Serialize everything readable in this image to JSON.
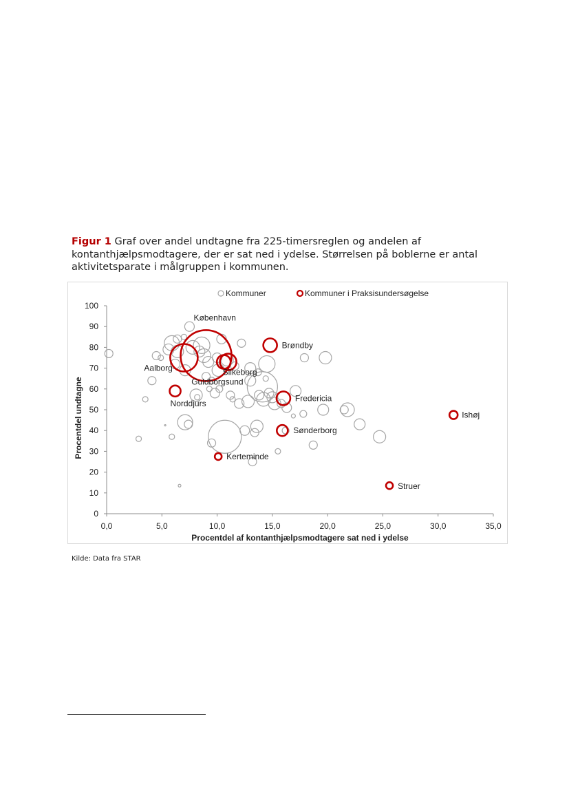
{
  "caption": {
    "figure_label": "Figur 1",
    "text": " Graf over andel undtagne fra 225-timersreglen og andelen af kontanthjælpsmodtagere, der er sat ned i ydelse. Størrelsen på boblerne er antal aktivitetsparate i målgruppen i kommunen."
  },
  "source": "Kilde: Data fra STAR",
  "colors": {
    "kommuner": "#a6a6a6",
    "praksis": "#c00000"
  },
  "chart_data": {
    "type": "scatter",
    "subtype": "bubble",
    "xlabel": "Procentdel af kontanthjælpsmodtagere sat ned i ydelse",
    "ylabel": "Procentdel undtagne",
    "xlim": [
      0,
      35
    ],
    "ylim": [
      0,
      100
    ],
    "x_ticks": [
      "0,0",
      "5,0",
      "10,0",
      "15,0",
      "20,0",
      "25,0",
      "30,0",
      "35,0"
    ],
    "y_ticks": [
      "0",
      "10",
      "20",
      "30",
      "40",
      "50",
      "60",
      "70",
      "80",
      "90",
      "100"
    ],
    "legend_position": "top",
    "grid": false,
    "series": [
      {
        "name": "Kommuner",
        "points": [
          [
            0.2,
            77,
            6
          ],
          [
            2.9,
            36,
            4
          ],
          [
            3.5,
            55,
            4
          ],
          [
            4.1,
            64,
            6
          ],
          [
            4.5,
            76,
            6
          ],
          [
            4.9,
            75,
            4
          ],
          [
            5.3,
            42.5,
            1
          ],
          [
            5.6,
            79,
            8
          ],
          [
            5.9,
            82,
            11
          ],
          [
            5.9,
            37,
            4
          ],
          [
            6.2,
            72,
            7
          ],
          [
            6.4,
            84,
            6
          ],
          [
            6.4,
            78,
            9
          ],
          [
            6.6,
            13.5,
            2
          ],
          [
            7.0,
            85,
            4
          ],
          [
            7.1,
            44,
            11
          ],
          [
            7.1,
            69,
            8
          ],
          [
            7.4,
            43,
            6
          ],
          [
            7.5,
            90,
            7
          ],
          [
            7.8,
            80,
            10
          ],
          [
            8.1,
            57,
            9
          ],
          [
            8.2,
            56,
            4
          ],
          [
            8.4,
            78,
            8
          ],
          [
            8.6,
            81,
            12
          ],
          [
            8.8,
            76,
            10
          ],
          [
            9.0,
            66,
            6
          ],
          [
            9.2,
            73,
            8
          ],
          [
            9.5,
            64,
            5
          ],
          [
            9.3,
            60,
            4
          ],
          [
            9.5,
            34,
            6
          ],
          [
            9.8,
            58,
            7
          ],
          [
            10.0,
            75,
            7
          ],
          [
            10.1,
            69,
            9
          ],
          [
            10.2,
            60,
            5
          ],
          [
            10.4,
            84,
            7
          ],
          [
            10.7,
            37,
            24
          ],
          [
            10.9,
            74,
            9
          ],
          [
            11.2,
            57,
            6
          ],
          [
            11.4,
            55,
            4
          ],
          [
            11.6,
            71,
            6
          ],
          [
            12.0,
            53,
            7
          ],
          [
            12.2,
            82,
            6
          ],
          [
            12.5,
            40,
            7
          ],
          [
            12.8,
            54,
            9
          ],
          [
            13.0,
            64,
            8
          ],
          [
            13.0,
            70,
            8
          ],
          [
            13.2,
            25,
            6
          ],
          [
            13.4,
            39,
            6
          ],
          [
            13.6,
            42,
            9
          ],
          [
            13.7,
            68,
            5
          ],
          [
            13.8,
            57,
            7
          ],
          [
            14.1,
            61,
            22
          ],
          [
            14.2,
            55,
            10
          ],
          [
            14.4,
            65,
            4
          ],
          [
            14.5,
            72,
            12
          ],
          [
            14.7,
            58,
            7
          ],
          [
            15.0,
            56,
            8
          ],
          [
            15.2,
            53,
            9
          ],
          [
            15.5,
            30,
            4
          ],
          [
            15.8,
            53,
            6
          ],
          [
            16.2,
            40,
            5
          ],
          [
            16.3,
            51,
            7
          ],
          [
            16.9,
            47,
            3
          ],
          [
            17.1,
            59,
            8
          ],
          [
            17.8,
            48,
            5
          ],
          [
            17.9,
            75,
            6
          ],
          [
            18.7,
            33,
            6
          ],
          [
            19.6,
            50,
            8
          ],
          [
            19.8,
            75,
            9
          ],
          [
            21.5,
            50,
            6
          ],
          [
            21.8,
            50,
            10
          ],
          [
            22.9,
            43,
            8
          ],
          [
            24.7,
            37,
            9
          ]
        ]
      },
      {
        "name": "Kommuner i Praksisundersøgelse",
        "points": [
          [
            9.0,
            76,
            37,
            "København"
          ],
          [
            7.0,
            75,
            20,
            "Aalborg"
          ],
          [
            14.8,
            81,
            10,
            "Brøndby"
          ],
          [
            11.0,
            73,
            12,
            "Silkeborg"
          ],
          [
            10.6,
            73,
            10,
            "Guldborgsund"
          ],
          [
            6.2,
            59,
            8,
            "Norddjurs"
          ],
          [
            16.0,
            55.5,
            10,
            "Fredericia"
          ],
          [
            31.4,
            47.5,
            6,
            "Ishøj"
          ],
          [
            15.9,
            40,
            8,
            "Sønderborg"
          ],
          [
            10.1,
            27.5,
            5,
            "Kerteminde"
          ],
          [
            25.6,
            13.5,
            5,
            "Struer"
          ]
        ]
      }
    ]
  }
}
